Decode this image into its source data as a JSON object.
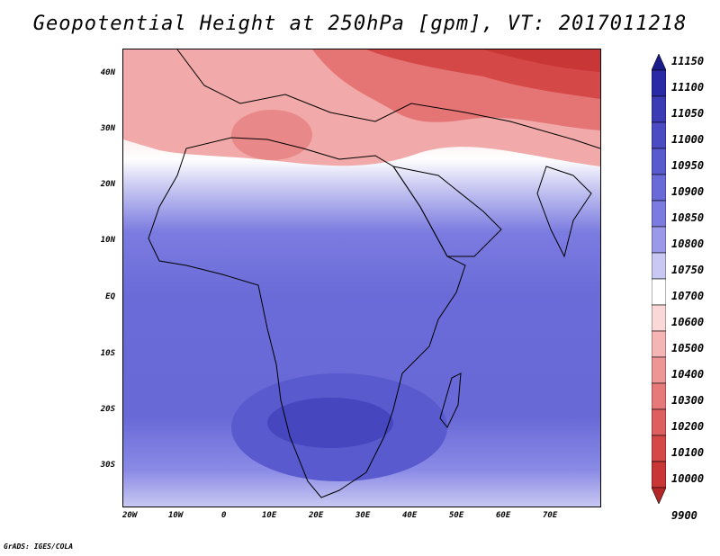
{
  "title": "Geopotential Height at 250hPa [gpm], VT: 2017011218",
  "credit": "GrADS: IGES/COLA",
  "latitude_labels": [
    "40N",
    "30N",
    "20N",
    "10N",
    "EQ",
    "10S",
    "20S",
    "30S"
  ],
  "longitude_labels": [
    "20W",
    "10W",
    "0",
    "10E",
    "20E",
    "30E",
    "40E",
    "50E",
    "60E",
    "70E"
  ],
  "colorbar": {
    "levels": [
      "11150",
      "11100",
      "11050",
      "11000",
      "10950",
      "10900",
      "10850",
      "10800",
      "10750",
      "10700",
      "10600",
      "10500",
      "10400",
      "10300",
      "10200",
      "10100",
      "10000",
      "9900"
    ],
    "colors": [
      "#1a1a8c",
      "#2a2aa6",
      "#3b3bb5",
      "#4b4bc4",
      "#5a5acf",
      "#6a6ad8",
      "#7b7be0",
      "#9a9ae8",
      "#c8c8f2",
      "#ffffff",
      "#fbd8d8",
      "#f5b5b5",
      "#ee9696",
      "#e67a7a",
      "#de5f5f",
      "#d54848",
      "#c93636",
      "#b52626"
    ]
  },
  "chart_data": {
    "type": "heatmap",
    "title": "Geopotential Height at 250hPa [gpm], VT: 2017011218",
    "variable": "Geopotential Height",
    "level": "250hPa",
    "units": "gpm",
    "valid_time": "2017011218",
    "lon_range": [
      -22,
      80
    ],
    "lat_range": [
      -36,
      45
    ]
  }
}
